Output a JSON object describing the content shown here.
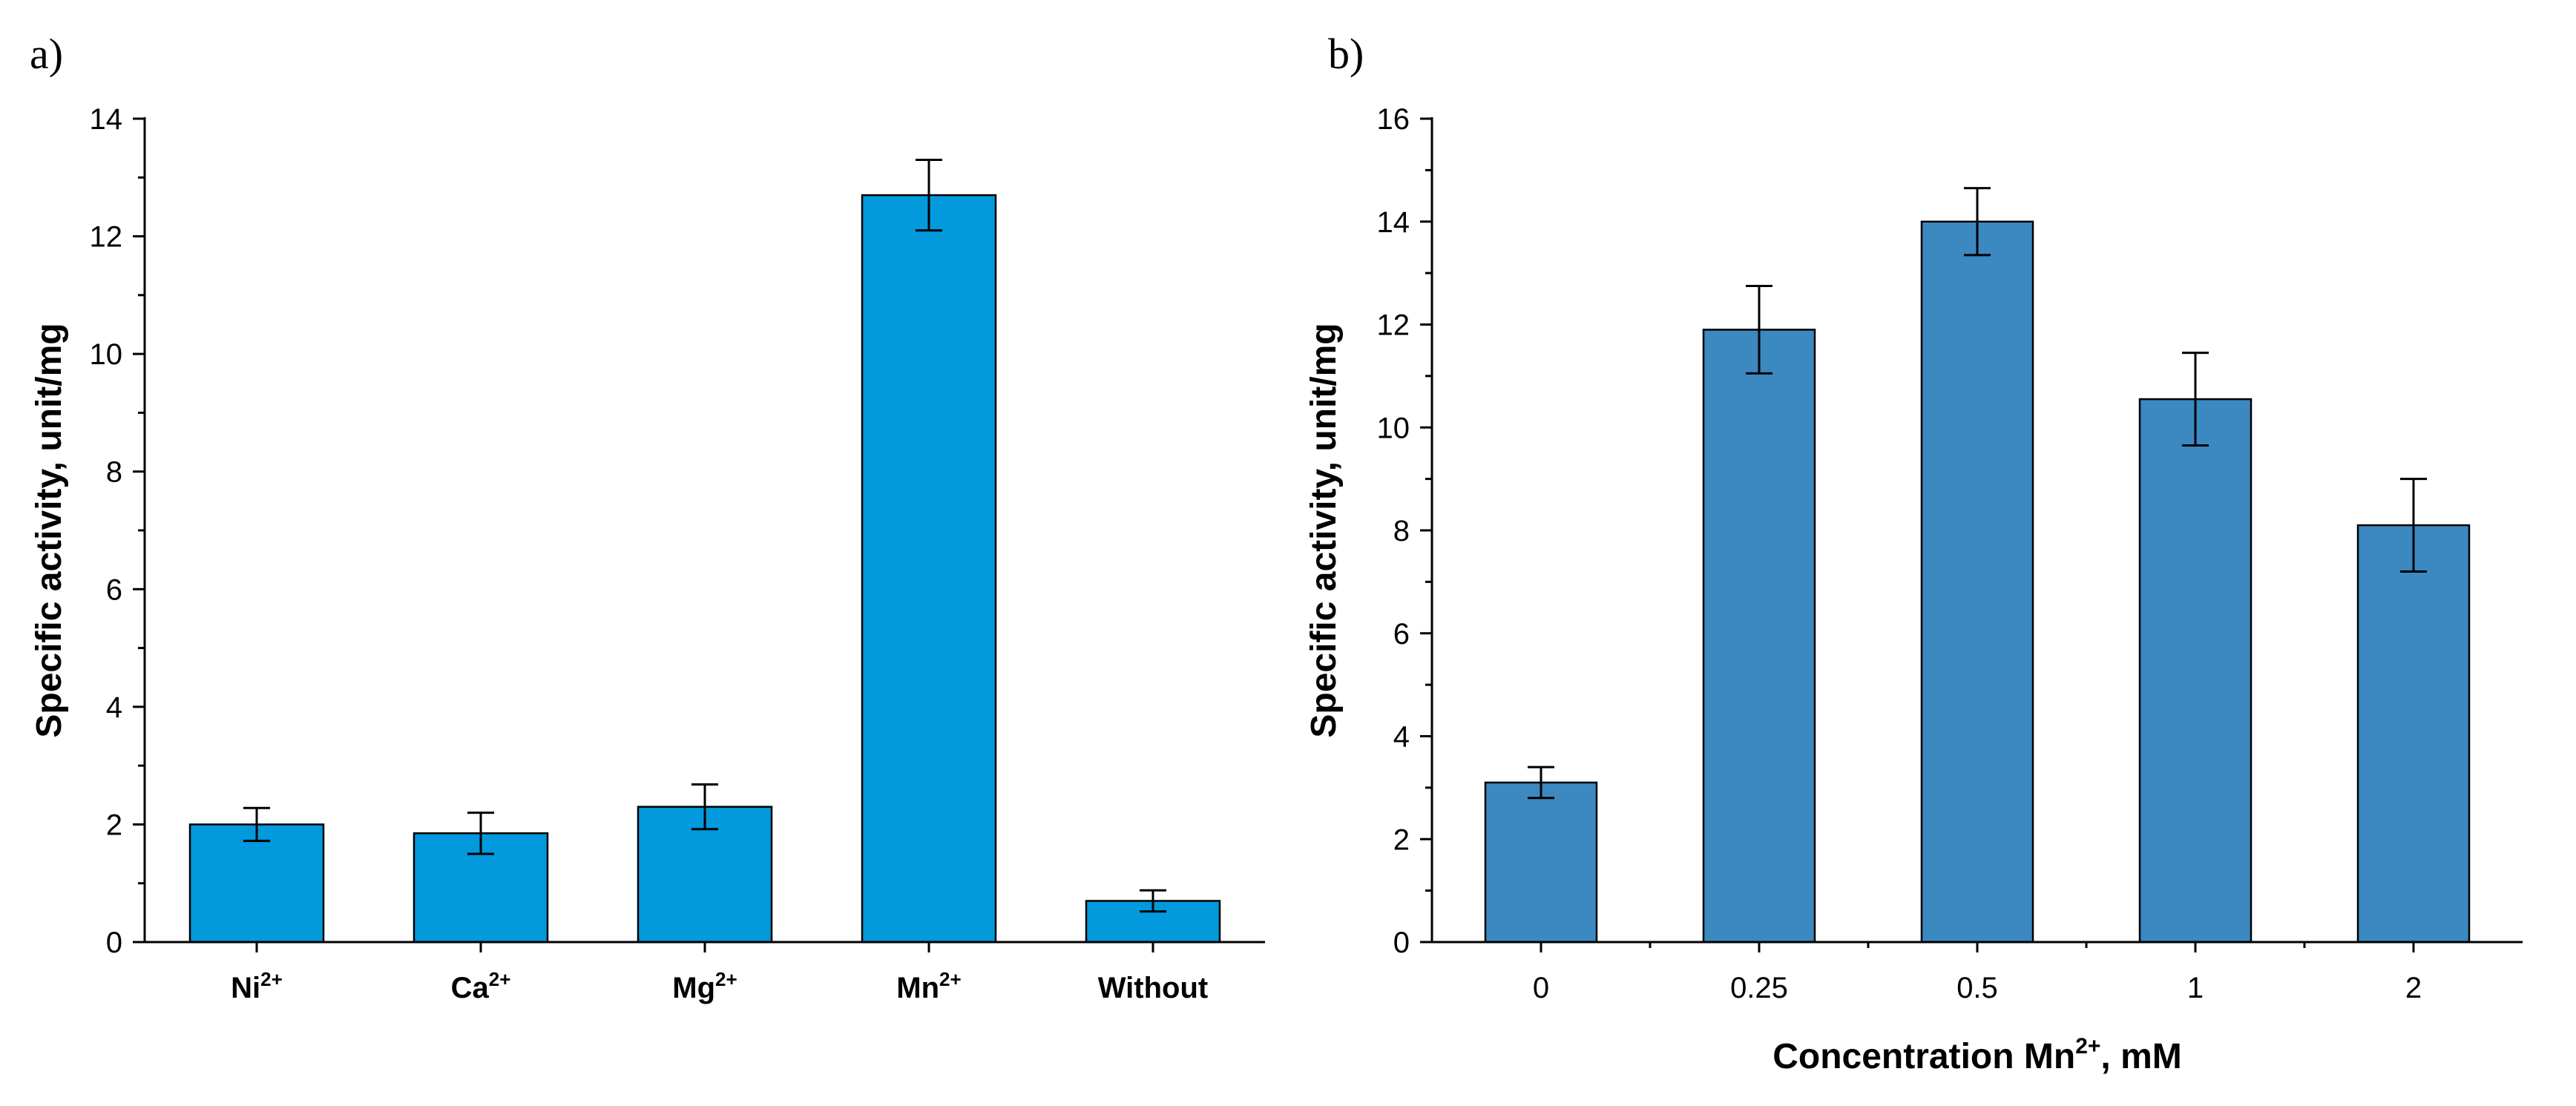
{
  "panels": [
    {
      "label": "a)"
    },
    {
      "label": "b)"
    }
  ],
  "chart_data": [
    {
      "type": "bar",
      "panel": "a)",
      "title": "",
      "categories": [
        "Ni",
        "Ca",
        "Mg",
        "Mn",
        "Without"
      ],
      "category_superscripts": [
        "2+",
        "2+",
        "2+",
        "2+",
        ""
      ],
      "values": [
        2.0,
        1.85,
        2.3,
        12.7,
        0.7
      ],
      "errors": [
        0.28,
        0.35,
        0.38,
        0.6,
        0.18
      ],
      "xlabel": "",
      "ylabel": "Specific activity, unit/mg",
      "ylim": [
        0,
        14
      ],
      "yticks": [
        0,
        2,
        4,
        6,
        8,
        10,
        12,
        14
      ],
      "bar_color": "#0299dd",
      "grid": false
    },
    {
      "type": "bar",
      "panel": "b)",
      "title": "",
      "categories": [
        "0",
        "0.25",
        "0.5",
        "1",
        "2"
      ],
      "values": [
        3.1,
        11.9,
        14.0,
        10.55,
        8.1
      ],
      "errors": [
        0.3,
        0.85,
        0.65,
        0.9,
        0.9
      ],
      "xlabel": "Concentration Mn",
      "xlabel_superscript": "2+",
      "xlabel_suffix": ", mM",
      "ylabel": "Specific activity, unit/mg",
      "ylim": [
        0,
        16
      ],
      "yticks": [
        0,
        2,
        4,
        6,
        8,
        10,
        12,
        14,
        16
      ],
      "bar_color": "#3c88c0",
      "grid": false
    }
  ]
}
